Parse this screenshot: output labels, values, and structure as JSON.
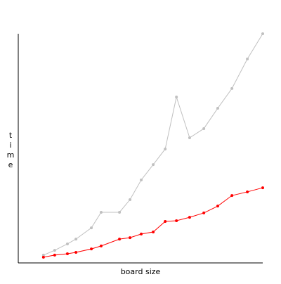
{
  "chart_data": {
    "type": "line",
    "xlabel": "board size",
    "ylabel": "time",
    "xlim": [
      0,
      100
    ],
    "ylim": [
      0,
      100
    ],
    "x": [
      10.3,
      14.9,
      20.1,
      23.6,
      29.9,
      33.9,
      41.4,
      45.7,
      50.3,
      55.2,
      60.1,
      64.7,
      70.1,
      75.9,
      81.6,
      87.4,
      93.7,
      100
    ],
    "series": [
      {
        "color": "#c0c0c0",
        "values": [
          3.4,
          5.5,
          8.3,
          10.4,
          15.3,
          22.1,
          22.1,
          27.6,
          36.2,
          42.9,
          49.7,
          72.4,
          54.6,
          58.6,
          67.5,
          76.1,
          89.0,
          100
        ]
      },
      {
        "color": "#ff0000",
        "values": [
          2.5,
          3.4,
          4.0,
          4.6,
          6.1,
          7.4,
          10.4,
          11.0,
          12.6,
          13.5,
          18.1,
          18.4,
          19.9,
          21.8,
          24.8,
          29.4,
          31.0,
          32.8
        ]
      }
    ]
  }
}
